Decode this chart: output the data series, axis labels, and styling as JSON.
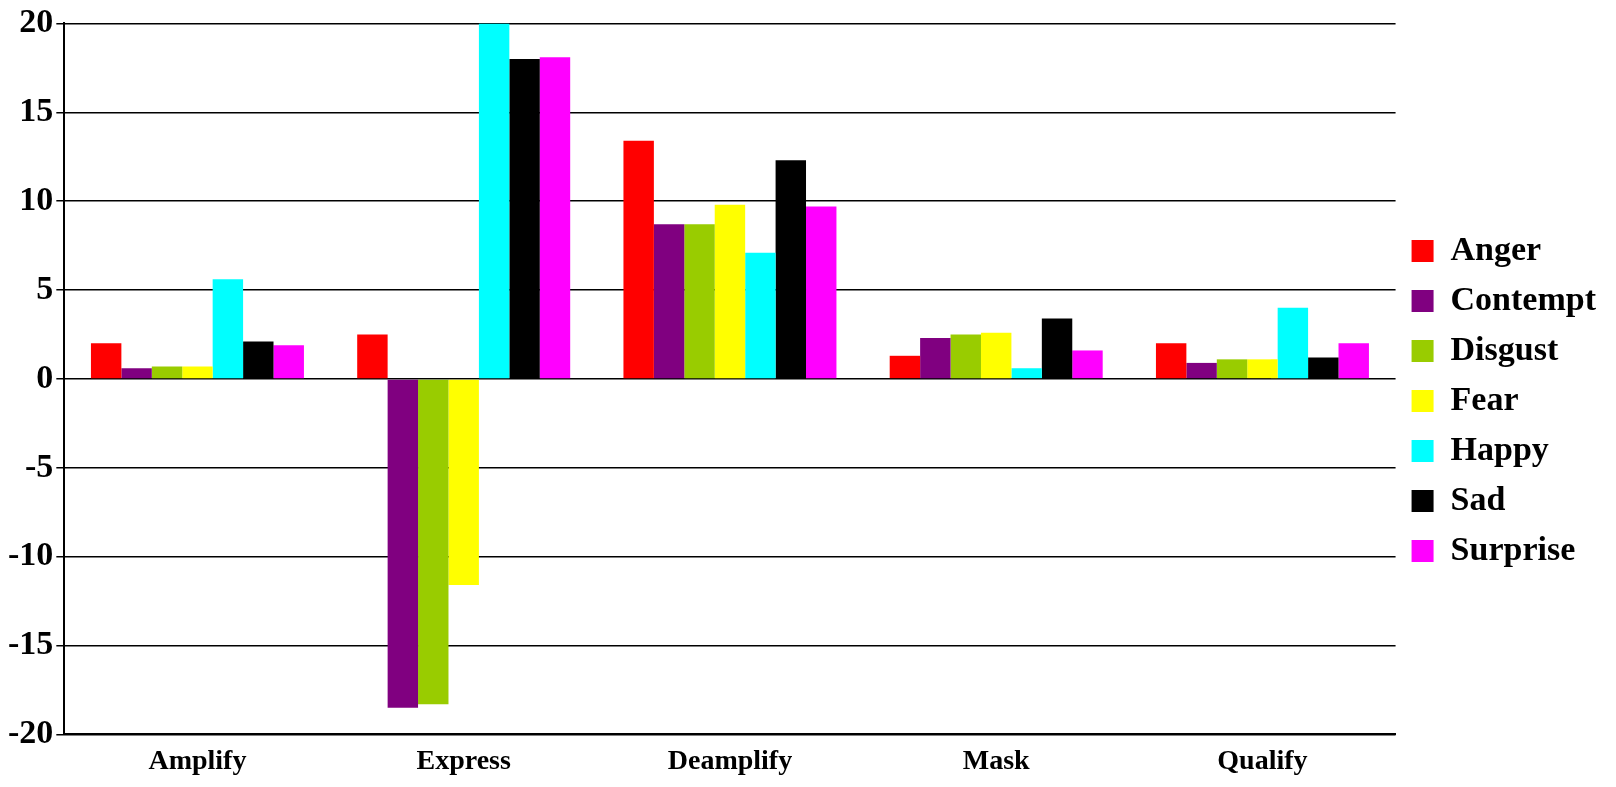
{
  "chart_data": {
    "type": "bar",
    "categories": [
      "Amplify",
      "Express",
      "Deamplify",
      "Mask",
      "Qualify"
    ],
    "series": [
      {
        "name": "Anger",
        "color": "#ff0000",
        "values": [
          2.0,
          2.5,
          13.4,
          1.3,
          2.0
        ]
      },
      {
        "name": "Contempt",
        "color": "#800080",
        "values": [
          0.6,
          -18.5,
          8.7,
          2.3,
          0.9
        ]
      },
      {
        "name": "Disgust",
        "color": "#99cc00",
        "values": [
          0.7,
          -18.3,
          8.7,
          2.5,
          1.1
        ]
      },
      {
        "name": "Fear",
        "color": "#ffff00",
        "values": [
          0.7,
          -11.6,
          9.8,
          2.6,
          1.1
        ]
      },
      {
        "name": "Happy",
        "color": "#00ffff",
        "values": [
          5.6,
          20,
          7.1,
          0.6,
          4.0
        ]
      },
      {
        "name": "Sad",
        "color": "#000000",
        "values": [
          2.1,
          18,
          12.3,
          3.4,
          1.2
        ]
      },
      {
        "name": "Surprise",
        "color": "#ff00ff",
        "values": [
          1.9,
          18.1,
          9.7,
          1.6,
          2.0
        ]
      }
    ],
    "ylim": [
      -20,
      20
    ],
    "yticks": [
      -20,
      -15,
      -10,
      -5,
      0,
      5,
      10,
      15,
      20
    ],
    "grid": "y",
    "legend": "right"
  }
}
